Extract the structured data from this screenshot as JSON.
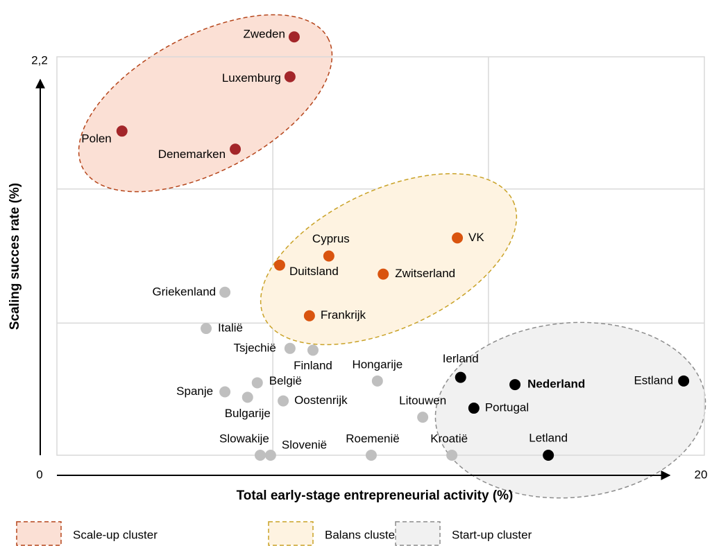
{
  "chart_data": {
    "type": "scatter",
    "xlabel": "Total early-stage entrepreneurial activity (%)",
    "ylabel": "Scaling succes rate (%)",
    "xlim": [
      0,
      20
    ],
    "ylim": [
      0,
      2.2
    ],
    "xticks": [
      0,
      20
    ],
    "yticks": [
      {
        "value": 2.2,
        "label": "2,2"
      }
    ],
    "xgrid": [
      6.67,
      13.33
    ],
    "ygrid": [
      0.73,
      1.47
    ],
    "series": [
      {
        "name": "Scale-up cluster",
        "color": "#a3262a",
        "area_color": "#fbe0d5",
        "border_color": "#b5451b",
        "labels": [
          "Zweden",
          "Luxemburg",
          "Polen",
          "Denemarken"
        ],
        "x": [
          7.33,
          7.2,
          2.01,
          5.51
        ],
        "values": [
          2.31,
          2.09,
          1.79,
          1.69
        ]
      },
      {
        "name": "Balans cluster",
        "color": "#d9540f",
        "area_color": "#fef3e1",
        "border_color": "#c9a227",
        "labels": [
          "Cyprus",
          "Duitsland",
          "Zwitserland",
          "VK",
          "Frankrijk"
        ],
        "x": [
          8.4,
          6.88,
          10.08,
          12.37,
          7.8
        ],
        "values": [
          1.1,
          1.05,
          1.0,
          1.2,
          0.77
        ]
      },
      {
        "color": "#bfbfbf",
        "labels": [
          "Griekenland",
          "Italië",
          "Tsjechië",
          "Finland",
          "Hongarije",
          "België",
          "Spanje",
          "Bulgarije",
          "Oostenrijk",
          "Litouwen",
          "Slowakije",
          "Slovenië",
          "Roemenië",
          "Kroatië"
        ],
        "x": [
          5.19,
          4.61,
          7.2,
          7.91,
          9.9,
          6.19,
          5.19,
          5.89,
          6.99,
          11.3,
          6.28,
          6.6,
          9.71,
          12.2
        ],
        "values": [
          0.9,
          0.7,
          0.59,
          0.58,
          0.41,
          0.4,
          0.35,
          0.32,
          0.3,
          0.21,
          0,
          0,
          0,
          0
        ]
      },
      {
        "name": "Start-up cluster",
        "color": "#000000",
        "area_color": "#f1f1f1",
        "border_color": "#8c8c8c",
        "labels": [
          "Ierland",
          "Nederland",
          "Portugal",
          "Estland",
          "Letland"
        ],
        "x": [
          12.47,
          14.15,
          12.88,
          19.36,
          15.18
        ],
        "values": [
          0.43,
          0.39,
          0.26,
          0.41,
          0
        ]
      }
    ]
  }
}
